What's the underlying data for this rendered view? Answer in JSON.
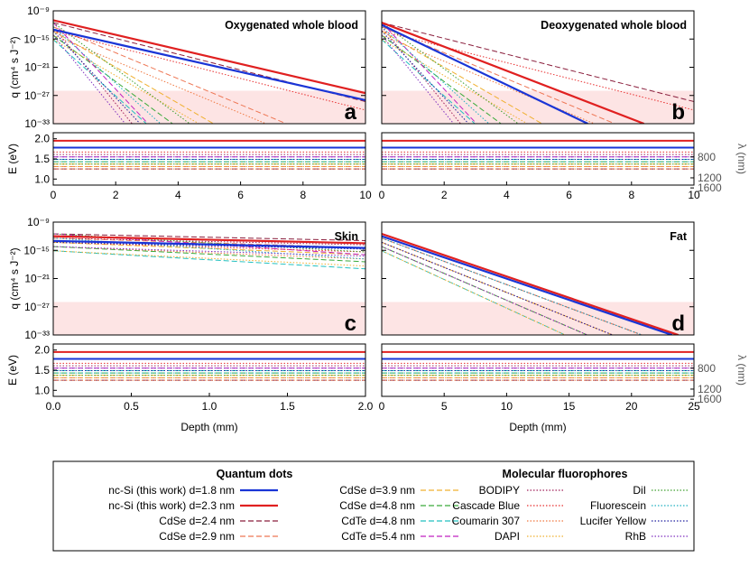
{
  "chart_data": {
    "type": "line",
    "y_label": "q (cm⁴ s J⁻²)",
    "e_label": "E (eV)",
    "lambda_label": "λ (nm)",
    "x_label": "Depth (mm)",
    "q_ticks": [
      "10⁻⁹",
      "10⁻¹⁵",
      "10⁻²¹",
      "10⁻²⁷",
      "10⁻³³"
    ],
    "e_ticks": [
      "2.0",
      "1.5",
      "1.0"
    ],
    "lambda_ticks": [
      "800",
      "1200",
      "1600"
    ],
    "shaded_band_log10_q": [
      -33,
      -26
    ],
    "panels": [
      {
        "title": "Oxygenated whole blood",
        "letter": "a",
        "xlim": [
          0,
          10
        ],
        "xticks": [
          "0",
          "2",
          "4",
          "6",
          "8",
          "10"
        ],
        "series_endpoints_log10_q": {
          "nc-Si d=1.8 nm": [
            -13,
            -28
          ],
          "nc-Si d=2.3 nm": [
            -11,
            -26.5
          ]
        }
      },
      {
        "title": "Deoxygenated whole blood",
        "letter": "b",
        "xlim": [
          0,
          10
        ],
        "xticks": [
          "0",
          "2",
          "4",
          "6",
          "8",
          "10"
        ],
        "series_endpoints_log10_q": {
          "nc-Si d=1.8 nm": [
            -12,
            -33
          ],
          "nc-Si d=2.3 nm": [
            -11.5,
            -33
          ]
        }
      },
      {
        "title": "Skin",
        "letter": "c",
        "xlim": [
          0,
          2
        ],
        "xticks": [
          "0.0",
          "0.5",
          "1.0",
          "1.5",
          "2.0"
        ],
        "series_endpoints_log10_q": {
          "nc-Si d=1.8 nm": [
            -13,
            -14.5
          ],
          "nc-Si d=2.3 nm": [
            -12,
            -13.5
          ]
        }
      },
      {
        "title": "Fat",
        "letter": "d",
        "xlim": [
          0,
          25
        ],
        "xticks": [
          "0",
          "5",
          "10",
          "15",
          "20",
          "25"
        ],
        "series_endpoints_log10_q": {
          "nc-Si d=1.8 nm": [
            -12,
            -33
          ],
          "nc-Si d=2.3 nm": [
            -11.5,
            -33
          ]
        }
      }
    ],
    "legend": {
      "quantum_dots_title": "Quantum dots",
      "molecular_title": "Molecular fluorophores",
      "qd_col1": [
        {
          "name": "nc-Si (this work) d=1.8 nm",
          "color": "#1a35d6",
          "style": "solid"
        },
        {
          "name": "nc-Si (this work) d=2.3 nm",
          "color": "#e02020",
          "style": "solid"
        },
        {
          "name": "CdSe d=2.4 nm",
          "color": "#8a1e3c",
          "style": "dashed"
        },
        {
          "name": "CdSe d=2.9 nm",
          "color": "#ee7755",
          "style": "dashed"
        }
      ],
      "qd_col2": [
        {
          "name": "CdSe d=3.9 nm",
          "color": "#f0b030",
          "style": "dashed"
        },
        {
          "name": "CdSe d=4.8 nm",
          "color": "#3aaa3a",
          "style": "dashed"
        },
        {
          "name": "CdTe d=4.8 nm",
          "color": "#22c0c0",
          "style": "dashed"
        },
        {
          "name": "CdTe d=5.4 nm",
          "color": "#c020c0",
          "style": "dashed"
        }
      ],
      "mol_col1": [
        {
          "name": "BODIPY",
          "color": "#a0205a",
          "style": "dotted"
        },
        {
          "name": "Cascade Blue",
          "color": "#e83030",
          "style": "dotted"
        },
        {
          "name": "Coumarin 307",
          "color": "#f07840",
          "style": "dotted"
        },
        {
          "name": "DAPI",
          "color": "#f0b030",
          "style": "dotted"
        }
      ],
      "mol_col2": [
        {
          "name": "DiI",
          "color": "#40a030",
          "style": "dotted"
        },
        {
          "name": "Fluorescein",
          "color": "#20b0c0",
          "style": "dotted"
        },
        {
          "name": "Lucifer Yellow",
          "color": "#2020a0",
          "style": "dotted"
        },
        {
          "name": "RhB",
          "color": "#8030c0",
          "style": "dotted"
        }
      ]
    }
  }
}
